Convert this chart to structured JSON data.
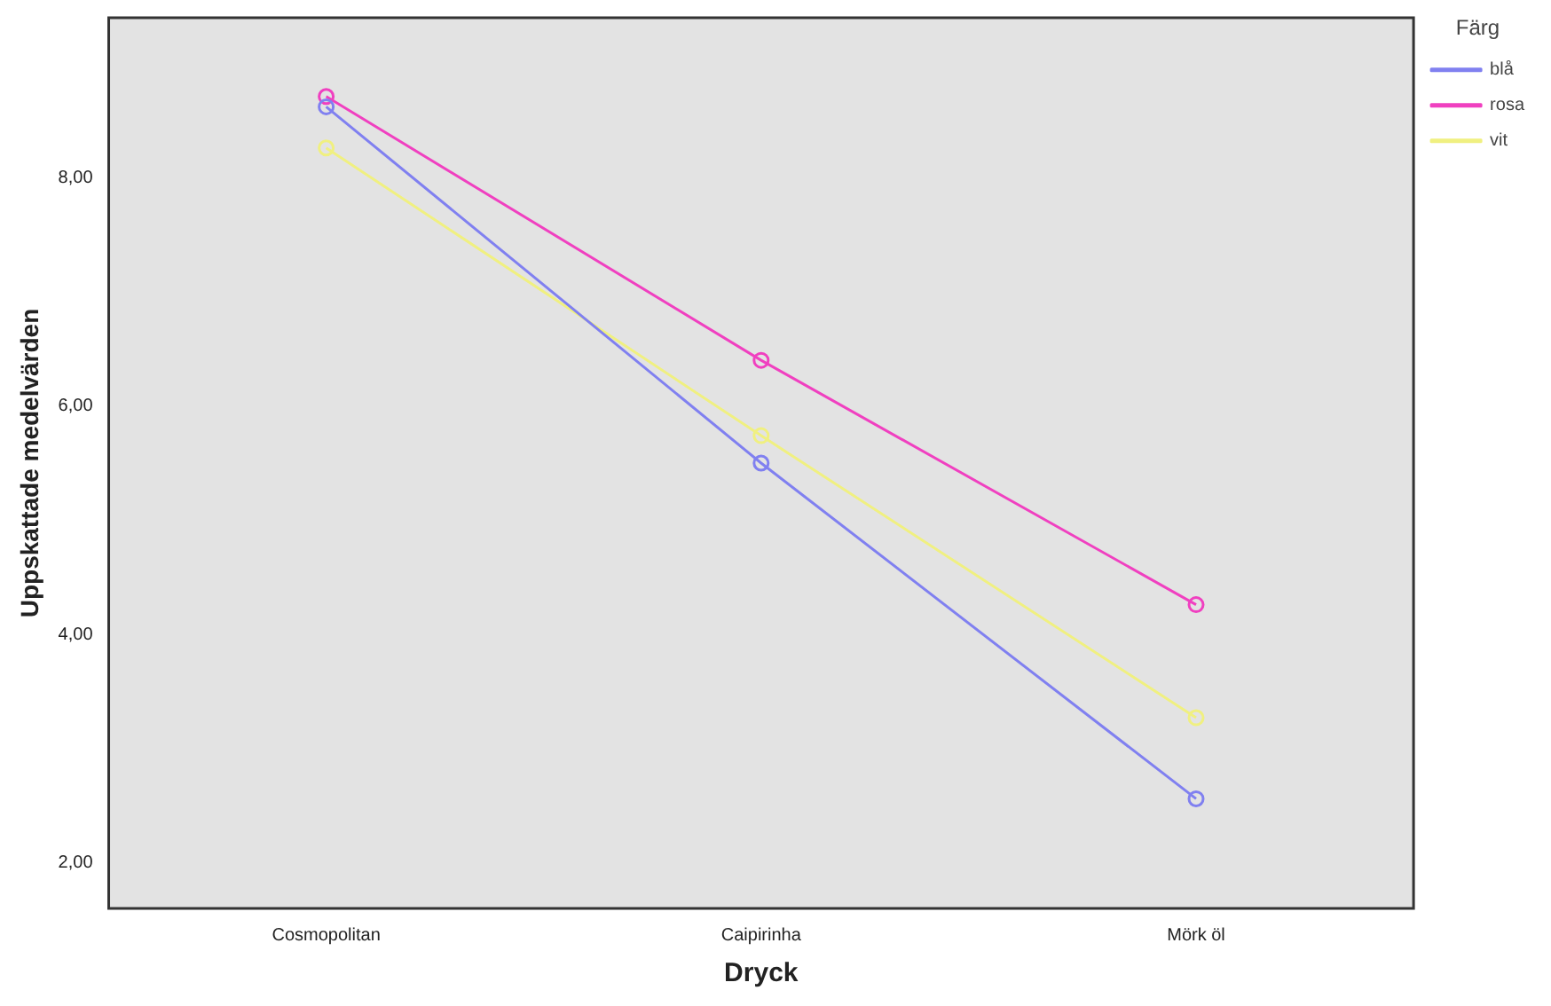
{
  "chart_data": {
    "type": "line",
    "xlabel": "Dryck",
    "ylabel": "Uppskattade medelvärden",
    "legend_title": "Färg",
    "categories": [
      "Cosmopolitan",
      "Caipirinha",
      "Mörk öl"
    ],
    "series": [
      {
        "name": "blå",
        "color": "#8080f0",
        "values": [
          8.62,
          5.5,
          2.56
        ]
      },
      {
        "name": "rosa",
        "color": "#f040c0",
        "values": [
          8.71,
          6.4,
          4.26
        ]
      },
      {
        "name": "vit",
        "color": "#f0f080",
        "values": [
          8.26,
          5.74,
          3.27
        ]
      }
    ],
    "ylim": [
      1.6,
      9.4
    ],
    "yticks": [
      {
        "value": 2,
        "label": "2,00"
      },
      {
        "value": 4,
        "label": "4,00"
      },
      {
        "value": 6,
        "label": "6,00"
      },
      {
        "value": 8,
        "label": "8,00"
      }
    ],
    "grid": false,
    "legend": "top right",
    "marker": "circle",
    "line_style": "solid"
  }
}
